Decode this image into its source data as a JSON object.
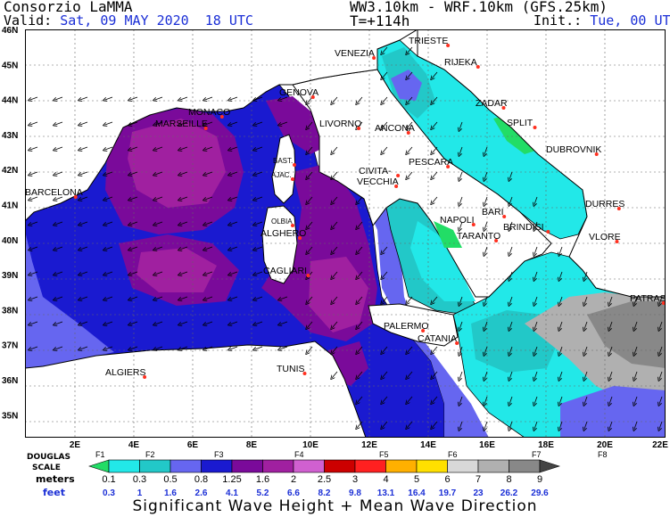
{
  "header": {
    "org": "Consorzio LaMMA",
    "valid_label": "Valid:",
    "valid_value": "Sat, 09 MAY 2020",
    "valid_time": "18 UTC",
    "model": "WW3.10km - WRF.10km (GFS.25km)",
    "forecast_step": "T=+114h",
    "init_label": "Init.:",
    "init_value": "Tue, 00 UTC"
  },
  "axes": {
    "lat_labels": [
      "46N",
      "45N",
      "44N",
      "43N",
      "42N",
      "41N",
      "40N",
      "39N",
      "38N",
      "37N",
      "36N",
      "35N"
    ],
    "lon_labels": [
      "2E",
      "4E",
      "6E",
      "8E",
      "10E",
      "12E",
      "14E",
      "16E",
      "18E",
      "20E",
      "22E"
    ]
  },
  "cities": [
    {
      "name": "TRIESTE"
    },
    {
      "name": "VENEZIA"
    },
    {
      "name": "RIJEKA"
    },
    {
      "name": "GENOVA"
    },
    {
      "name": "MONACO"
    },
    {
      "name": "MARSEILLE"
    },
    {
      "name": "LIVORNO"
    },
    {
      "name": "ZADAR"
    },
    {
      "name": "ANCONA"
    },
    {
      "name": "SPLIT"
    },
    {
      "name": "DUBROVNIK"
    },
    {
      "name": "BAST."
    },
    {
      "name": "AJAC."
    },
    {
      "name": "PESCARA"
    },
    {
      "name": "CIVITA-"
    },
    {
      "name": "VECCHIA"
    },
    {
      "name": "BARCELONA"
    },
    {
      "name": "DURRES"
    },
    {
      "name": "BARI"
    },
    {
      "name": "OLBIA"
    },
    {
      "name": "NAPOLI"
    },
    {
      "name": "BRINDISI"
    },
    {
      "name": "ALGHERO"
    },
    {
      "name": "TARANTO"
    },
    {
      "name": "VLORE"
    },
    {
      "name": "CAGLIARI"
    },
    {
      "name": "PATRAS"
    },
    {
      "name": "PALERMO"
    },
    {
      "name": "CATANIA"
    },
    {
      "name": "TUNIS"
    },
    {
      "name": "ALGIERS"
    }
  ],
  "legend": {
    "douglas_label": "DOUGLAS",
    "scale_label": "SCALE",
    "meters_label": "meters",
    "feet_label": "feet",
    "douglas_classes": [
      "F1",
      "F2",
      "F3",
      "F4",
      "F5",
      "F6",
      "F7",
      "F8"
    ],
    "meters": [
      "0.1",
      "0.3",
      "0.5",
      "0.8",
      "1.25",
      "1.6",
      "2",
      "2.5",
      "3",
      "4",
      "5",
      "6",
      "7",
      "8",
      "9"
    ],
    "feet": [
      "0.3",
      "1",
      "1.6",
      "2.6",
      "4.1",
      "5.2",
      "6.6",
      "8.2",
      "9.8",
      "13.1",
      "16.4",
      "19.7",
      "23",
      "26.2",
      "29.6"
    ],
    "colors": [
      "#22dd66",
      "#22e8e8",
      "#22c8c8",
      "#6666f0",
      "#1a1ad0",
      "#7a0a9a",
      "#a020a0",
      "#d060d0",
      "#cc0000",
      "#ff2020",
      "#ffb000",
      "#ffe000",
      "#d8d8d8",
      "#b0b0b0",
      "#888888",
      "#444444"
    ]
  },
  "footer": {
    "caption": "Significant Wave Height + Mean Wave Direction"
  }
}
